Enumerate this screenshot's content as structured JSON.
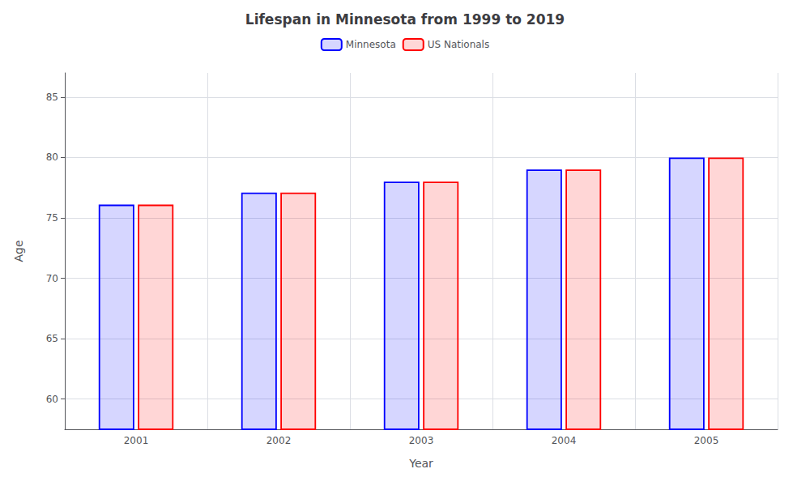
{
  "chart_data": {
    "type": "bar",
    "title": "Lifespan in Minnesota from 1999 to 2019",
    "xlabel": "Year",
    "ylabel": "Age",
    "categories": [
      "2001",
      "2002",
      "2003",
      "2004",
      "2005"
    ],
    "series": [
      {
        "name": "Minnesota",
        "color": "#0000ff",
        "values": [
          76.1,
          77.1,
          78.0,
          79.0,
          80.0
        ]
      },
      {
        "name": "US Nationals",
        "color": "#ff0000",
        "values": [
          76.1,
          77.1,
          78.0,
          79.0,
          80.0
        ]
      }
    ],
    "ylim": [
      57.5,
      87
    ],
    "yticks": [
      60,
      65,
      70,
      75,
      80,
      85
    ],
    "grid": true,
    "legend": "upper center"
  }
}
